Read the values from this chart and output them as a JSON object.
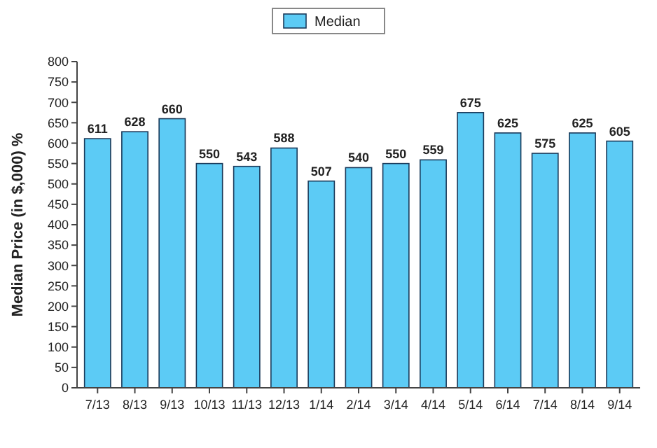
{
  "chart_data": {
    "type": "bar",
    "ylabel": "Median Price (in $,000) %",
    "categories": [
      "7/13",
      "8/13",
      "9/13",
      "10/13",
      "11/13",
      "12/13",
      "1/14",
      "2/14",
      "3/14",
      "4/14",
      "5/14",
      "6/14",
      "7/14",
      "8/14",
      "9/14"
    ],
    "series": [
      {
        "name": "Median",
        "color": "#5ccbf5",
        "values": [
          611,
          628,
          660,
          550,
          543,
          588,
          507,
          540,
          550,
          559,
          675,
          625,
          575,
          625,
          605
        ]
      }
    ],
    "ylim": [
      0,
      800
    ],
    "yticks": [
      0,
      50,
      100,
      150,
      200,
      250,
      300,
      350,
      400,
      450,
      500,
      550,
      600,
      650,
      700,
      750,
      800
    ],
    "data_labels": true,
    "legend": "top",
    "grid": false
  }
}
